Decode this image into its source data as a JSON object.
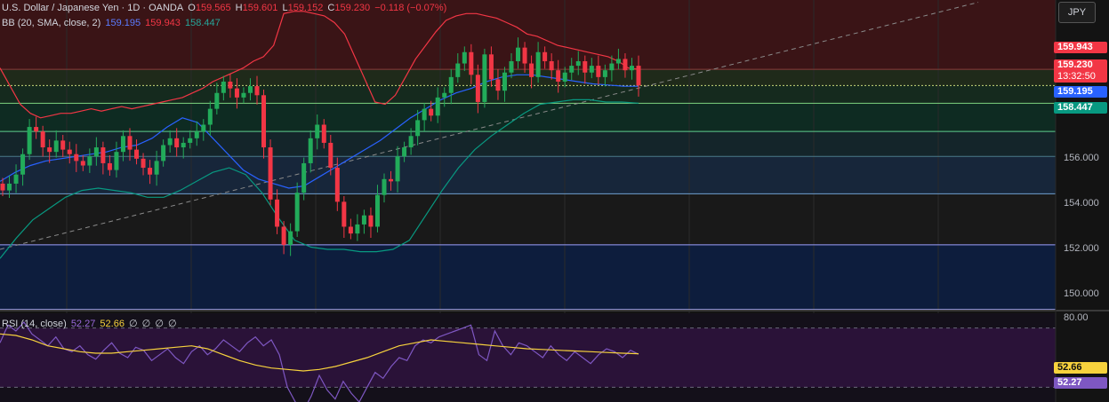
{
  "header": {
    "symbol": "U.S. Dollar / Japanese Yen · 1D · OANDA",
    "open_label": "O",
    "open": "159.565",
    "high_label": "H",
    "high": "159.601",
    "low_label": "L",
    "low": "159.152",
    "close_label": "C",
    "close": "159.230",
    "change": "−0.118 (−0.07%)"
  },
  "bb_legend": {
    "label": "BB (20, SMA, close, 2)",
    "basis": "159.195",
    "upper": "159.943",
    "lower": "158.447"
  },
  "rsi_legend": {
    "label": "RSI (14, close)",
    "rsi": "52.27",
    "ma": "52.66",
    "na1": "∅",
    "na2": "∅",
    "na3": "∅",
    "na4": "∅"
  },
  "currency": "JPY",
  "price_badges": {
    "upper": "159.943",
    "last": "159.230",
    "countdown": "13:32:50",
    "basis": "159.195",
    "lower": "158.447"
  },
  "rsi_badges": {
    "ma": "52.66",
    "rsi": "52.27"
  },
  "colors": {
    "up": "#089981",
    "up_body": "#22ab5a",
    "down": "#f23645",
    "bb_upper": "#f23645",
    "bb_basis": "#2962ff",
    "bb_lower": "#089981",
    "rsi": "#7e57c2",
    "rsi_ma": "#f7d23d"
  },
  "chart_data": [
    {
      "type": "candlestick",
      "title": "U.S. Dollar / Japanese Yen · 1D · OANDA",
      "y_ticks": [
        150,
        152,
        154,
        156
      ],
      "ylim": [
        149.3,
        163.0
      ],
      "grid": true,
      "horizontal_levels": [
        159.943,
        159.23,
        158.447,
        157.2,
        156.1,
        154.45,
        152.2,
        149.35
      ],
      "trendline": {
        "from": [
          0,
          152.0
        ],
        "to": [
          1100,
          162.9
        ],
        "style": "dashed"
      },
      "candles_close": [
        154.6,
        154.9,
        155.3,
        156.2,
        157.4,
        157.2,
        156.5,
        156.3,
        156.8,
        156.4,
        156.2,
        155.9,
        155.7,
        156.1,
        156.5,
        155.8,
        155.5,
        156.3,
        157.0,
        156.4,
        156.0,
        155.6,
        155.3,
        155.9,
        156.6,
        156.9,
        156.5,
        156.7,
        156.9,
        157.2,
        157.5,
        158.2,
        158.9,
        159.4,
        159.1,
        158.7,
        158.9,
        159.2,
        158.8,
        156.5,
        154.2,
        153.0,
        152.2,
        152.8,
        154.5,
        155.8,
        156.9,
        157.5,
        156.7,
        155.6,
        154.1,
        153.0,
        152.7,
        153.1,
        153.5,
        153.0,
        154.4,
        155.1,
        155.0,
        156.1,
        156.5,
        157.0,
        157.7,
        158.2,
        157.9,
        158.7,
        158.9,
        159.6,
        160.2,
        160.7,
        159.7,
        158.5,
        160.6,
        159.5,
        159.0,
        159.8,
        160.3,
        160.9,
        160.2,
        159.6,
        160.7,
        160.3,
        159.9,
        159.4,
        159.8,
        160.1,
        160.3,
        159.8,
        160.1,
        159.6,
        159.9,
        160.2,
        160.4,
        159.9,
        160.1,
        159.23
      ],
      "bb_upper": [
        160.0,
        159.2,
        158.4,
        158.0,
        157.8,
        157.9,
        158.0,
        158.0,
        158.1,
        158.2,
        158.1,
        158.2,
        158.3,
        158.2,
        158.3,
        158.4,
        158.5,
        158.6,
        158.7,
        158.9,
        159.1,
        159.4,
        159.6,
        159.8,
        160.0,
        160.3,
        160.5,
        161.0,
        162.4,
        162.5,
        162.5,
        162.4,
        162.3,
        162.0,
        161.5,
        160.5,
        159.5,
        158.5,
        158.4,
        158.8,
        159.6,
        160.4,
        161.0,
        161.6,
        162.1,
        162.3,
        162.4,
        162.4,
        162.3,
        162.2,
        162.0,
        161.8,
        161.5,
        161.4,
        161.2,
        161.0,
        160.9,
        160.8,
        160.7,
        160.6,
        160.5,
        160.3,
        160.0,
        159.943
      ],
      "bb_basis": [
        155.0,
        155.4,
        155.7,
        155.9,
        156.0,
        156.1,
        156.2,
        156.3,
        156.5,
        156.6,
        156.9,
        157.4,
        157.8,
        157.6,
        156.9,
        156.2,
        155.5,
        155.1,
        154.9,
        154.7,
        154.8,
        155.2,
        155.6,
        156.0,
        156.4,
        156.8,
        157.3,
        157.8,
        158.2,
        158.6,
        158.9,
        159.1,
        159.4,
        159.6,
        159.7,
        159.7,
        159.6,
        159.5,
        159.4,
        159.3,
        159.25,
        159.2,
        159.195
      ],
      "bb_lower": [
        151.6,
        152.5,
        153.3,
        153.8,
        154.3,
        154.6,
        154.7,
        154.6,
        154.5,
        154.3,
        154.3,
        154.6,
        155.0,
        155.4,
        155.6,
        155.3,
        154.5,
        153.4,
        152.4,
        152.1,
        152.0,
        152.0,
        151.9,
        151.9,
        152.0,
        152.4,
        153.5,
        154.6,
        155.6,
        156.4,
        157.0,
        157.5,
        158.0,
        158.4,
        158.5,
        158.6,
        158.6,
        158.5,
        158.5,
        158.447
      ]
    },
    {
      "type": "line",
      "title": "RSI (14, close)",
      "y_ticks": [
        80.0
      ],
      "guide_levels": [
        70,
        30
      ],
      "series": [
        {
          "name": "RSI",
          "values": [
            60,
            72,
            68,
            74,
            66,
            62,
            58,
            64,
            56,
            54,
            58,
            52,
            49,
            55,
            60,
            53,
            50,
            57,
            55,
            48,
            52,
            56,
            50,
            46,
            54,
            58,
            52,
            56,
            62,
            58,
            54,
            60,
            64,
            58,
            62,
            52,
            30,
            20,
            14,
            24,
            38,
            28,
            22,
            34,
            26,
            20,
            30,
            40,
            36,
            44,
            50,
            48,
            58,
            62,
            60,
            64,
            66,
            68,
            70,
            72,
            52,
            48,
            68,
            58,
            52,
            60,
            58,
            54,
            50,
            58,
            52,
            48,
            54,
            50,
            46,
            52,
            56,
            54,
            50,
            55,
            52.27
          ]
        },
        {
          "name": "RSI-based MA",
          "values": [
            66,
            65,
            62,
            58,
            56,
            54,
            53,
            53,
            54,
            55,
            56,
            57,
            58,
            56,
            52,
            48,
            45,
            43,
            42,
            41,
            42,
            44,
            47,
            50,
            54,
            58,
            60,
            62,
            61,
            60,
            59,
            58,
            57,
            56,
            55.5,
            55,
            54.5,
            54,
            53.5,
            53,
            52.66
          ]
        }
      ]
    }
  ]
}
